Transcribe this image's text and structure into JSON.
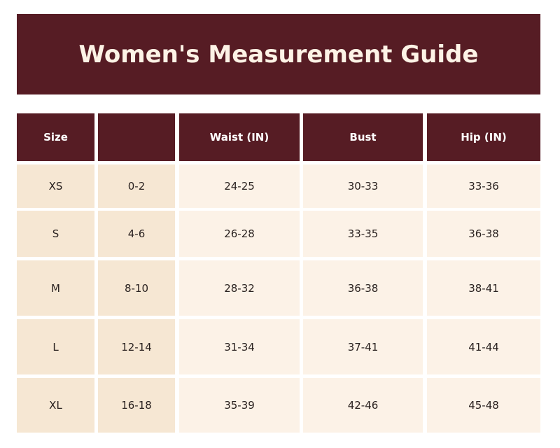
{
  "header": {
    "title": "Women's Measurement Guide"
  },
  "table": {
    "columns": [
      "Size",
      null,
      "Waist (IN)",
      "Bust",
      "Hip (IN)"
    ],
    "rows": [
      [
        "XS",
        "0-2",
        "24-25",
        "30-33",
        "33-36"
      ],
      [
        "S",
        "4-6",
        "26-28",
        "33-35",
        "36-38"
      ],
      [
        "M",
        "8-10",
        "28-32",
        "36-38",
        "38-41"
      ],
      [
        "L",
        "12-14",
        "31-34",
        "37-41",
        "41-44"
      ],
      [
        "XL",
        "16-18",
        "35-39",
        "42-46",
        "45-48"
      ]
    ]
  }
}
